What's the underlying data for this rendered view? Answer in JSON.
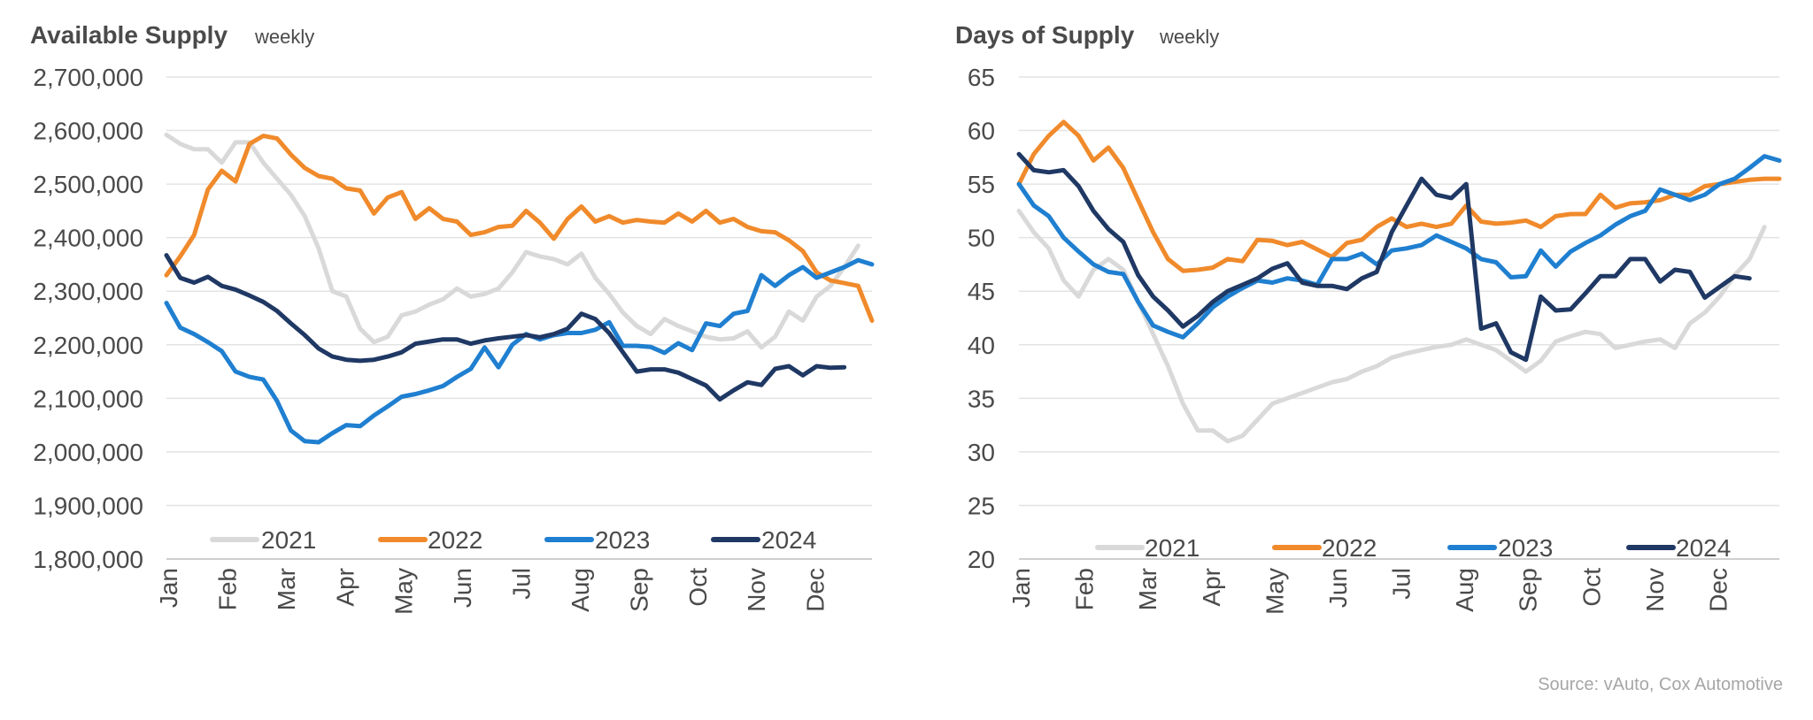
{
  "source": "Source: vAuto, Cox Automotive",
  "colors": {
    "2021": "#d9d9d9",
    "2022": "#f08a2b",
    "2023": "#1f7fd0",
    "2024": "#1f3864"
  },
  "chart_data": [
    {
      "type": "line",
      "title": "Available Supply",
      "subtitle": "weekly",
      "x_labels": [
        "Jan",
        "Feb",
        "Mar",
        "Apr",
        "May",
        "Jun",
        "Jul",
        "Aug",
        "Sep",
        "Oct",
        "Nov",
        "Dec"
      ],
      "ylim": [
        1800000,
        2700000
      ],
      "yticks": [
        1800000,
        1900000,
        2000000,
        2100000,
        2200000,
        2300000,
        2400000,
        2500000,
        2600000,
        2700000
      ],
      "ytick_labels": [
        "1,800,000",
        "1,900,000",
        "2,000,000",
        "2,100,000",
        "2,200,000",
        "2,300,000",
        "2,400,000",
        "2,500,000",
        "2,600,000",
        "2,700,000"
      ],
      "legend": "bottom",
      "series": [
        {
          "name": "2021",
          "color": "#d9d9d9",
          "values": [
            2592000,
            2575000,
            2565000,
            2565000,
            2540000,
            2578000,
            2578000,
            2540000,
            2510000,
            2480000,
            2440000,
            2380000,
            2300000,
            2290000,
            2230000,
            2205000,
            2215000,
            2255000,
            2262000,
            2275000,
            2285000,
            2305000,
            2290000,
            2295000,
            2305000,
            2335000,
            2373000,
            2365000,
            2360000,
            2350000,
            2370000,
            2325000,
            2295000,
            2260000,
            2235000,
            2220000,
            2248000,
            2235000,
            2225000,
            2215000,
            2210000,
            2212000,
            2225000,
            2195000,
            2215000,
            2262000,
            2245000,
            2290000,
            2310000,
            2345000,
            2385000
          ]
        },
        {
          "name": "2022",
          "color": "#f08a2b",
          "values": [
            2330000,
            2365000,
            2405000,
            2490000,
            2525000,
            2505000,
            2575000,
            2590000,
            2585000,
            2555000,
            2530000,
            2515000,
            2510000,
            2492000,
            2488000,
            2445000,
            2475000,
            2485000,
            2435000,
            2455000,
            2435000,
            2430000,
            2405000,
            2410000,
            2420000,
            2422000,
            2450000,
            2428000,
            2398000,
            2435000,
            2458000,
            2430000,
            2440000,
            2428000,
            2433000,
            2430000,
            2428000,
            2445000,
            2430000,
            2450000,
            2428000,
            2435000,
            2420000,
            2412000,
            2410000,
            2395000,
            2375000,
            2335000,
            2320000,
            2315000,
            2310000,
            2245000
          ]
        },
        {
          "name": "2023",
          "color": "#1f7fd0",
          "values": [
            2278000,
            2232000,
            2220000,
            2205000,
            2188000,
            2150000,
            2140000,
            2135000,
            2095000,
            2040000,
            2020000,
            2018000,
            2035000,
            2050000,
            2048000,
            2068000,
            2085000,
            2103000,
            2108000,
            2115000,
            2123000,
            2140000,
            2155000,
            2195000,
            2158000,
            2200000,
            2220000,
            2210000,
            2218000,
            2222000,
            2222000,
            2228000,
            2242000,
            2198000,
            2198000,
            2196000,
            2185000,
            2203000,
            2190000,
            2240000,
            2235000,
            2258000,
            2263000,
            2330000,
            2310000,
            2330000,
            2345000,
            2325000,
            2335000,
            2345000,
            2358000,
            2350000
          ]
        },
        {
          "name": "2024",
          "color": "#1f3864",
          "values": [
            2367000,
            2325000,
            2316000,
            2327000,
            2310000,
            2303000,
            2292000,
            2280000,
            2263000,
            2240000,
            2218000,
            2193000,
            2178000,
            2172000,
            2170000,
            2172000,
            2178000,
            2186000,
            2202000,
            2206000,
            2210000,
            2210000,
            2202000,
            2208000,
            2212000,
            2215000,
            2218000,
            2214000,
            2220000,
            2230000,
            2258000,
            2248000,
            2222000,
            2186000,
            2150000,
            2154000,
            2154000,
            2148000,
            2136000,
            2124000,
            2098000,
            2115000,
            2130000,
            2125000,
            2155000,
            2160000,
            2143000,
            2160000,
            2157000,
            2158000
          ]
        }
      ]
    },
    {
      "type": "line",
      "title": "Days of Supply",
      "subtitle": "weekly",
      "x_labels": [
        "Jan",
        "Feb",
        "Mar",
        "Apr",
        "May",
        "Jun",
        "Jul",
        "Aug",
        "Sep",
        "Oct",
        "Nov",
        "Dec"
      ],
      "ylim": [
        20,
        65
      ],
      "yticks": [
        20,
        25,
        30,
        35,
        40,
        45,
        50,
        55,
        60,
        65
      ],
      "ytick_labels": [
        "20",
        "25",
        "30",
        "35",
        "40",
        "45",
        "50",
        "55",
        "60",
        "65"
      ],
      "legend": "bottom",
      "series": [
        {
          "name": "2021",
          "color": "#d9d9d9",
          "values": [
            52.5,
            50.5,
            49,
            46,
            44.5,
            47,
            48,
            47,
            44,
            41,
            38,
            34.5,
            32,
            32,
            31,
            31.5,
            33,
            34.5,
            35,
            35.5,
            36,
            36.5,
            36.8,
            37.5,
            38,
            38.8,
            39.2,
            39.5,
            39.8,
            40,
            40.5,
            40,
            39.5,
            38.5,
            37.5,
            38.5,
            40.3,
            40.8,
            41.2,
            41,
            39.7,
            40,
            40.3,
            40.5,
            39.7,
            42,
            43,
            44.5,
            46.5,
            48,
            51
          ]
        },
        {
          "name": "2022",
          "color": "#f08a2b",
          "values": [
            55,
            57.8,
            59.5,
            60.8,
            59.5,
            57.2,
            58.4,
            56.5,
            53.5,
            50.5,
            48,
            46.9,
            47,
            47.2,
            48,
            47.8,
            49.8,
            49.7,
            49.3,
            49.6,
            48.9,
            48.2,
            49.5,
            49.8,
            51,
            51.8,
            51,
            51.3,
            51,
            51.3,
            53,
            51.5,
            51.3,
            51.4,
            51.6,
            51,
            52,
            52.2,
            52.2,
            54,
            52.8,
            53.2,
            53.3,
            53.5,
            54,
            54,
            54.8,
            55,
            55.2,
            55.4,
            55.5,
            55.5
          ]
        },
        {
          "name": "2023",
          "color": "#1f7fd0",
          "values": [
            55,
            53,
            52,
            50,
            48.7,
            47.5,
            46.8,
            46.6,
            44,
            41.8,
            41.2,
            40.7,
            42,
            43.5,
            44.5,
            45.3,
            46,
            45.8,
            46.2,
            46,
            45.6,
            48,
            48,
            48.5,
            47.5,
            48.8,
            49,
            49.3,
            50.2,
            49.6,
            49,
            48,
            47.7,
            46.3,
            46.4,
            48.8,
            47.3,
            48.7,
            49.5,
            50.2,
            51.2,
            52,
            52.5,
            54.5,
            54,
            53.5,
            54,
            55,
            55.5,
            56.5,
            57.6,
            57.2
          ]
        },
        {
          "name": "2024",
          "color": "#1f3864",
          "values": [
            57.8,
            56.3,
            56.1,
            56.3,
            54.8,
            52.5,
            50.8,
            49.6,
            46.5,
            44.5,
            43.2,
            41.7,
            42.7,
            44,
            45,
            45.6,
            46.2,
            47.1,
            47.6,
            45.8,
            45.5,
            45.5,
            45.2,
            46.2,
            46.8,
            50.5,
            53,
            55.5,
            54,
            53.7,
            55,
            41.5,
            42,
            39.3,
            38.6,
            44.5,
            43.2,
            43.3,
            44.8,
            46.4,
            46.4,
            48,
            48,
            45.9,
            47,
            46.8,
            44.4,
            45.4,
            46.4,
            46.2
          ]
        }
      ]
    }
  ]
}
